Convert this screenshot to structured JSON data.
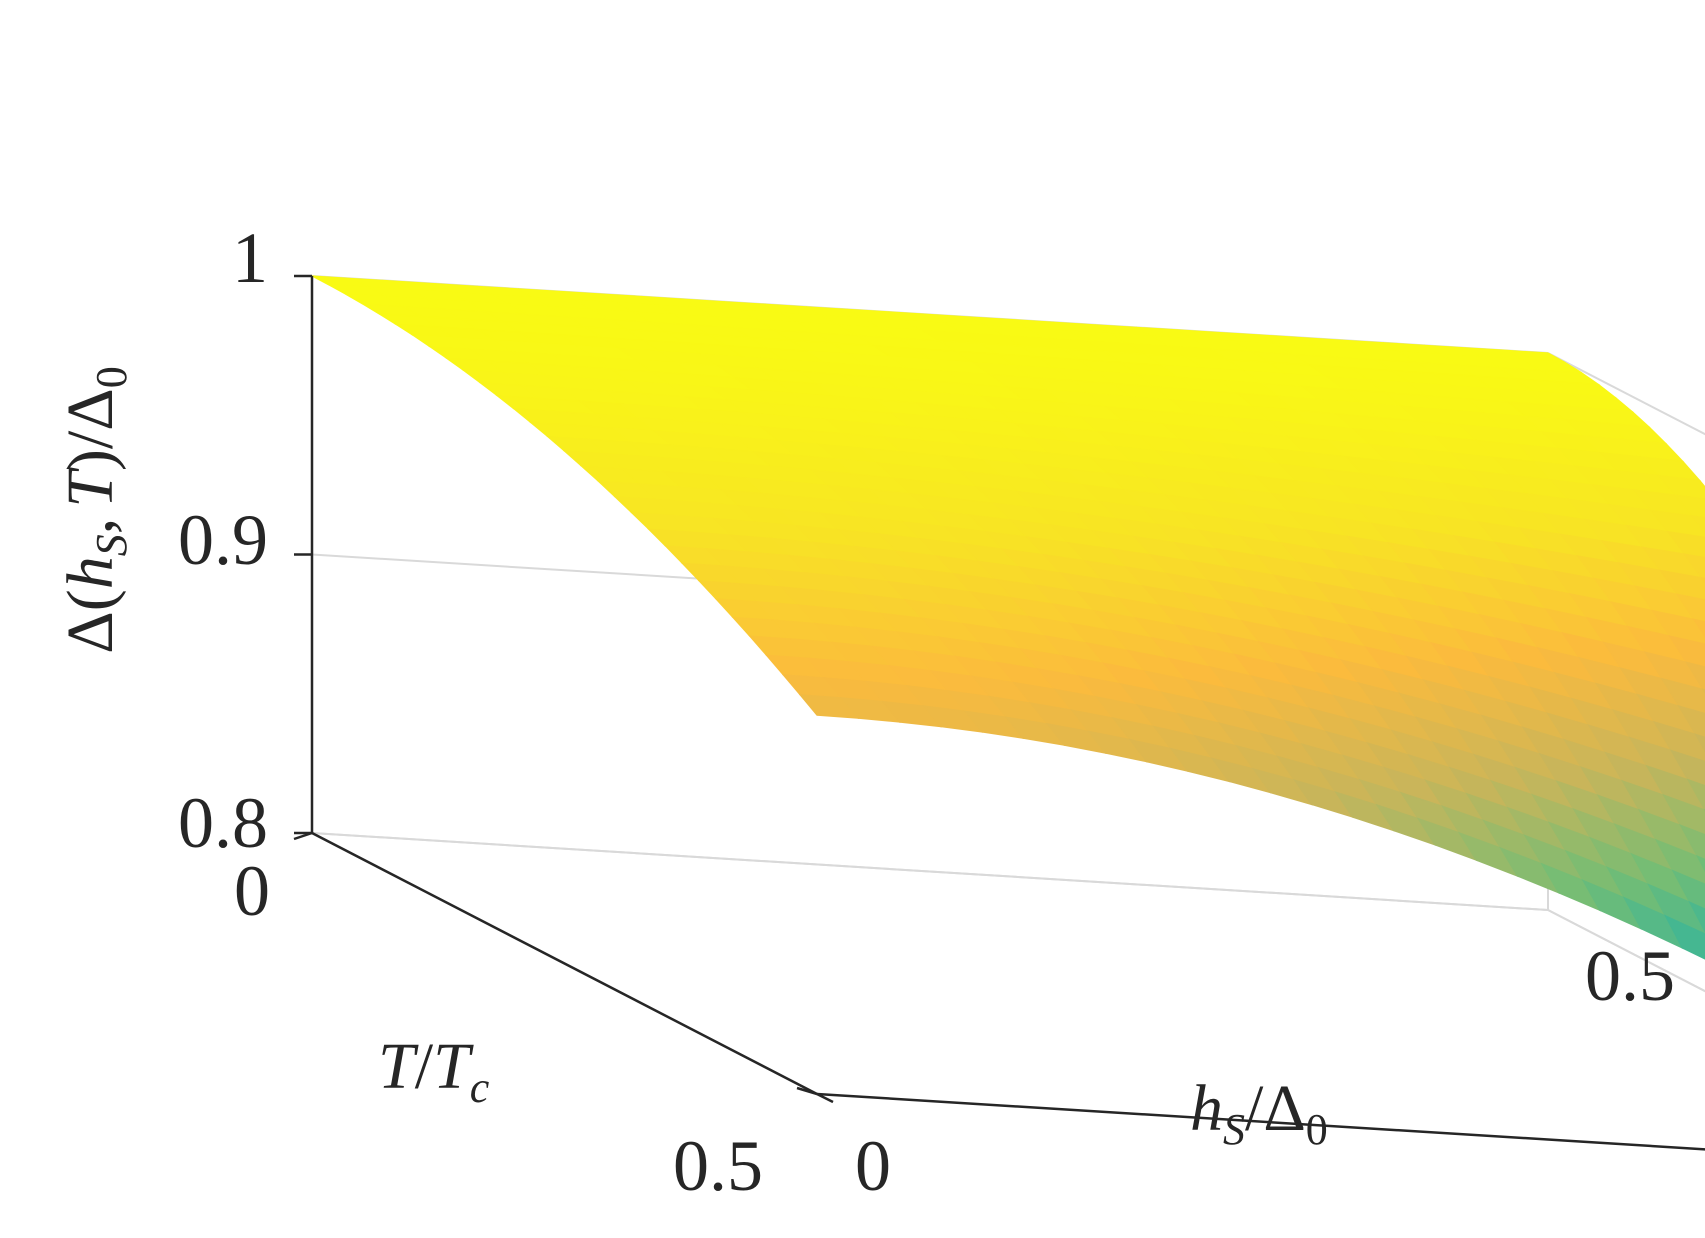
{
  "chart_data": {
    "type": "surface",
    "title": "",
    "xlabel_parts": {
      "h": "h",
      "S": "S",
      "slash": "/",
      "Delta": "Δ",
      "zero": "0"
    },
    "ylabel_parts": {
      "T": "T",
      "slash": "/",
      "Tc": "T",
      "c": "c"
    },
    "zlabel_parts": {
      "Delta": "Δ",
      "open": "(",
      "h": "h",
      "S": "S",
      "comma": ",",
      "T": "T",
      "close": ")",
      "slash": "/",
      "Delta0": "Δ",
      "zero": "0"
    },
    "x_ticks": [
      "0",
      "0.5"
    ],
    "y_ticks": [
      "0",
      "0.5"
    ],
    "z_ticks": [
      "0.8",
      "0.9",
      "1"
    ],
    "xlim": [
      0,
      0.5
    ],
    "ylim": [
      0,
      0.5
    ],
    "zlim": [
      0.8,
      1.0
    ],
    "grid": true,
    "colormap": "parula",
    "colormap_colors": [
      "#0a5bd9",
      "#1f9bd6",
      "#20b2a8",
      "#73bd75",
      "#c9b55a",
      "#fbbb3d",
      "#f8e424",
      "#f9fa14"
    ],
    "color_limits": [
      0.805,
      1.0
    ],
    "corner_values": [
      {
        "x": 0.0,
        "y": 0.0,
        "z": 1.0
      },
      {
        "x": 0.5,
        "y": 0.0,
        "z": 1.0
      },
      {
        "x": 0.0,
        "y": 0.5,
        "z": 0.936
      },
      {
        "x": 0.5,
        "y": 0.5,
        "z": 0.805
      }
    ]
  }
}
